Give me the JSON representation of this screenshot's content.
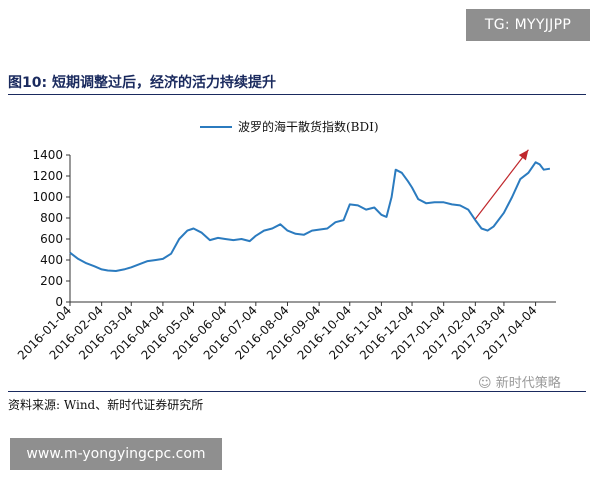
{
  "badge": {
    "text": "TG: MYYJJPP"
  },
  "figure": {
    "title": "图10:  短期调整过后，经济的活力持续提升",
    "source": "资料来源:  Wind、新时代证券研究所"
  },
  "watermark": {
    "text": "新时代策略"
  },
  "banner": {
    "url": "www.m-yongyingcpc.com"
  },
  "colors": {
    "line": "#2b7bbf",
    "arrow": "#c0282d",
    "title": "#1a2a5e",
    "badge": "#8f8f8f"
  },
  "chart_data": {
    "type": "line",
    "title": "",
    "xlabel": "",
    "ylabel": "",
    "legend": {
      "position": "top-center"
    },
    "grid": false,
    "ylim": [
      0,
      1400
    ],
    "yticks": [
      0,
      200,
      400,
      600,
      800,
      1000,
      1200,
      1400
    ],
    "xticks": [
      "2016-01-04",
      "2016-02-04",
      "2016-03-04",
      "2016-04-04",
      "2016-05-04",
      "2016-06-04",
      "2016-07-04",
      "2016-08-04",
      "2016-09-04",
      "2016-10-04",
      "2016-11-04",
      "2016-12-04",
      "2017-01-04",
      "2017-02-04",
      "2017-03-04",
      "2017-04-04"
    ],
    "series": [
      {
        "name": "波罗的海干散货指数(BDI)",
        "x": [
          "2016-01-04",
          "2016-01-12",
          "2016-01-20",
          "2016-01-28",
          "2016-02-04",
          "2016-02-10",
          "2016-02-18",
          "2016-02-26",
          "2016-03-04",
          "2016-03-12",
          "2016-03-20",
          "2016-03-28",
          "2016-04-04",
          "2016-04-12",
          "2016-04-20",
          "2016-04-28",
          "2016-05-04",
          "2016-05-12",
          "2016-05-20",
          "2016-05-28",
          "2016-06-04",
          "2016-06-12",
          "2016-06-20",
          "2016-06-28",
          "2016-07-04",
          "2016-07-12",
          "2016-07-20",
          "2016-07-28",
          "2016-08-04",
          "2016-08-12",
          "2016-08-20",
          "2016-08-28",
          "2016-09-04",
          "2016-09-12",
          "2016-09-20",
          "2016-09-28",
          "2016-10-04",
          "2016-10-12",
          "2016-10-20",
          "2016-10-28",
          "2016-11-04",
          "2016-11-09",
          "2016-11-14",
          "2016-11-18",
          "2016-11-24",
          "2016-11-30",
          "2016-12-04",
          "2016-12-10",
          "2016-12-18",
          "2016-12-26",
          "2017-01-04",
          "2017-01-12",
          "2017-01-20",
          "2017-01-28",
          "2017-02-04",
          "2017-02-10",
          "2017-02-16",
          "2017-02-22",
          "2017-03-04",
          "2017-03-12",
          "2017-03-20",
          "2017-03-28",
          "2017-04-04",
          "2017-04-08",
          "2017-04-12",
          "2017-04-18"
        ],
        "values": [
          470,
          410,
          370,
          340,
          310,
          300,
          295,
          310,
          330,
          360,
          390,
          400,
          410,
          460,
          600,
          680,
          700,
          660,
          590,
          610,
          600,
          590,
          600,
          580,
          630,
          680,
          700,
          740,
          680,
          650,
          640,
          680,
          690,
          700,
          760,
          780,
          930,
          920,
          880,
          900,
          830,
          810,
          1000,
          1260,
          1230,
          1150,
          1090,
          980,
          940,
          950,
          950,
          930,
          920,
          880,
          780,
          700,
          680,
          720,
          850,
          1000,
          1170,
          1230,
          1330,
          1310,
          1260,
          1270
        ]
      }
    ],
    "annotations": [
      {
        "type": "arrow",
        "from": [
          "2017-02-04",
          790
        ],
        "to": [
          "2017-03-28",
          1450
        ]
      }
    ]
  }
}
